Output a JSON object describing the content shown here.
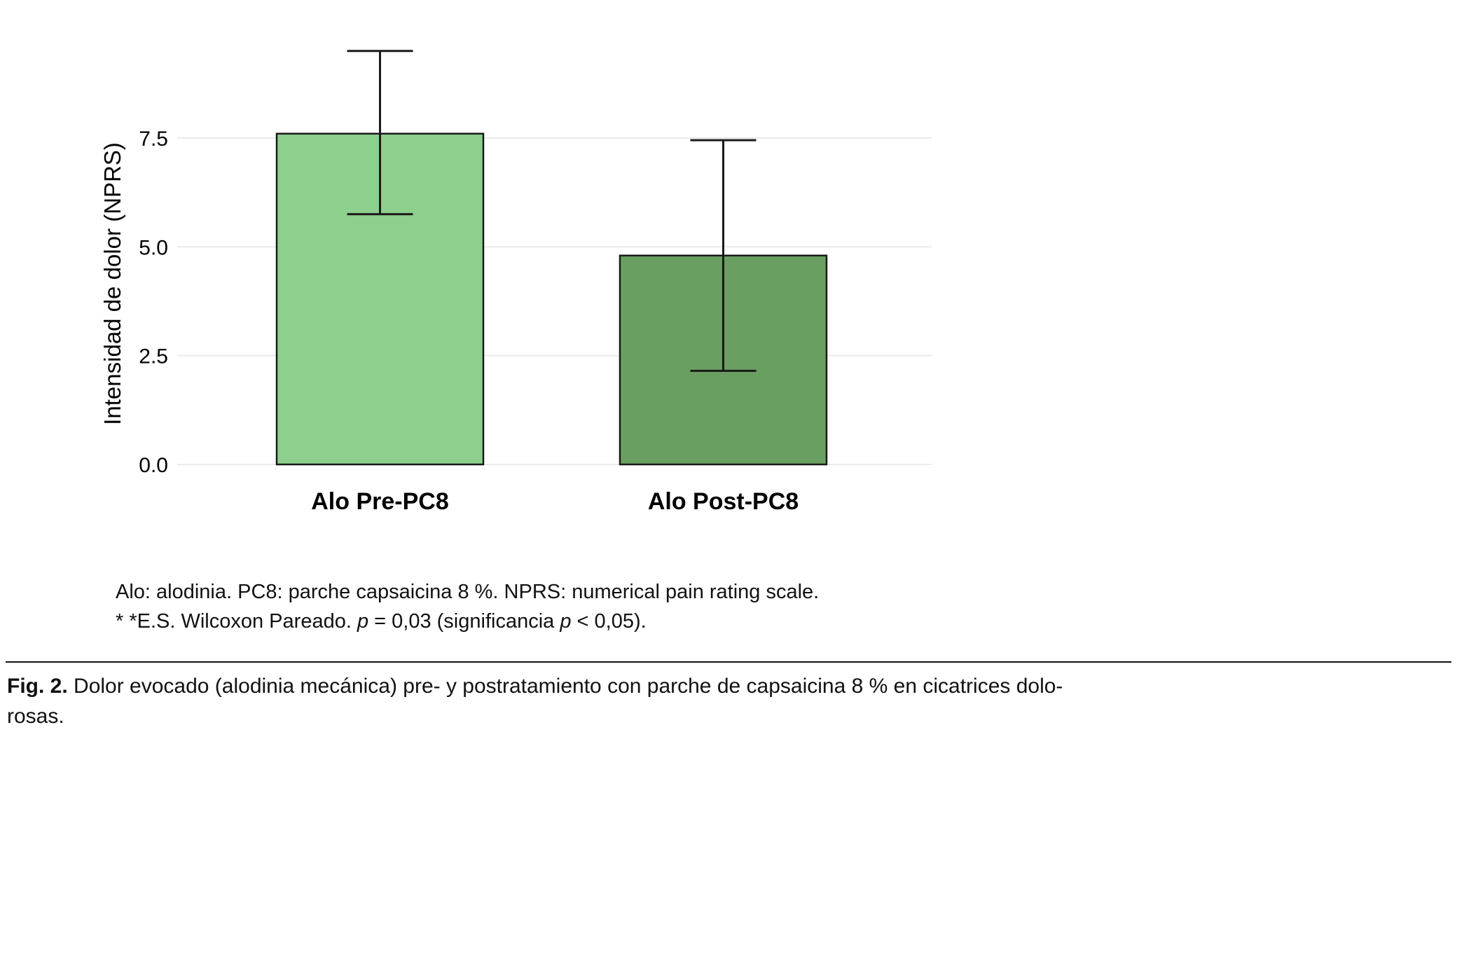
{
  "chart_data": {
    "type": "bar",
    "categories": [
      "Alo Pre-PC8",
      "Alo Post-PC8"
    ],
    "values": [
      7.6,
      4.8
    ],
    "error_low": [
      5.75,
      2.15
    ],
    "error_high": [
      9.5,
      7.45
    ],
    "bar_colors": [
      "#8dcf8d",
      "#699f60"
    ],
    "bar_stroke_color": "#1a1a1a",
    "error_bar_color": "#1a1a1a",
    "gridline_color": "#ebebeb",
    "title": "",
    "xlabel": "",
    "ylabel": "Intensidad de dolor (NPRS)",
    "yticks": [
      0.0,
      2.5,
      5.0,
      7.5
    ],
    "ytick_labels": [
      "0.0",
      "2.5",
      "5.0",
      "7.5"
    ],
    "ylim": [
      0,
      10
    ],
    "grid": true,
    "legend": false
  },
  "footnotes": {
    "line1": "Alo: alodinia. PC8: parche capsaicina 8 %. NPRS: numerical pain rating scale.",
    "line2": [
      {
        "text": "* *E.S. Wilcoxon Pareado. "
      },
      {
        "text": "p"
      },
      {
        "text": " = 0,03 (significancia "
      },
      {
        "text": "p"
      },
      {
        "text": " < 0,05)."
      }
    ]
  },
  "caption": {
    "label": "Fig. 2.",
    "line1": " Dolor evocado (alodinia mecánica) pre- y postratamiento con parche de capsaicina 8 % en cicatrices dolo-",
    "line2": "rosas."
  }
}
